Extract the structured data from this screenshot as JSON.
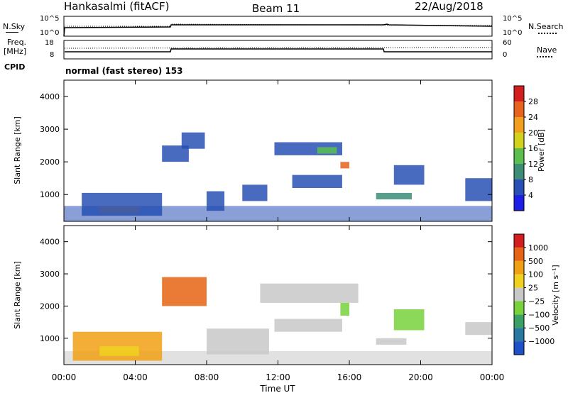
{
  "header": {
    "station": "Hankasalmi (fitACF)",
    "beam": "Beam 11",
    "date": "22/Aug/2018"
  },
  "summary_panels": {
    "nsky_label": "N.Sky",
    "nsearch_label": "N.Search",
    "freq_label": "Freq.",
    "freq_unit": "[MHz]",
    "nave_label": "Nave",
    "cpid_label": "CPID",
    "cpid_text": "normal (fast stereo) 153",
    "noise_ticks": [
      "10^5",
      "10^0"
    ],
    "freq_ticks": [
      "18",
      "8"
    ],
    "nave_ticks": [
      "60",
      "0"
    ]
  },
  "colorbars": {
    "power_label": "Power [dB]",
    "velocity_label": "Velocity [m s⁻¹]"
  },
  "chart_data": [
    {
      "type": "heatmap",
      "title": "",
      "xlabel": "Time UT",
      "ylabel": "Slant Range [km]",
      "xlim": [
        0,
        24
      ],
      "ylim": [
        180,
        4500
      ],
      "x_ticks": [
        "00:00",
        "04:00",
        "08:00",
        "12:00",
        "16:00",
        "20:00",
        "00:00"
      ],
      "y_ticks": [
        "1000",
        "2000",
        "3000",
        "4000"
      ],
      "y_tick_values": [
        1000,
        2000,
        3000,
        4000
      ],
      "colorbar": {
        "label": "Power [dB]",
        "ticks": [
          "4",
          "8",
          "12",
          "16",
          "20",
          "24",
          "28"
        ],
        "colors": [
          "#1e1ee6",
          "#2850b4",
          "#3c8c78",
          "#5abe50",
          "#d2d21e",
          "#f0a01e",
          "#e6641e",
          "#d21e1e"
        ]
      },
      "regions": [
        {
          "t0": 0.0,
          "t1": 24.0,
          "r0": 180,
          "r1": 650,
          "level": 1
        },
        {
          "t0": 2.0,
          "t1": 4.2,
          "r0": 420,
          "r1": 640,
          "level": 5
        },
        {
          "t0": 1.0,
          "t1": 5.5,
          "r0": 350,
          "r1": 1050,
          "level": 1
        },
        {
          "t0": 5.5,
          "t1": 7.0,
          "r0": 2000,
          "r1": 2500,
          "level": 1
        },
        {
          "t0": 6.6,
          "t1": 7.9,
          "r0": 2400,
          "r1": 2900,
          "level": 1
        },
        {
          "t0": 8.0,
          "t1": 9.0,
          "r0": 500,
          "r1": 1100,
          "level": 1
        },
        {
          "t0": 10.0,
          "t1": 11.4,
          "r0": 800,
          "r1": 1300,
          "level": 1
        },
        {
          "t0": 12.8,
          "t1": 15.6,
          "r0": 1200,
          "r1": 1600,
          "level": 1
        },
        {
          "t0": 11.8,
          "t1": 15.6,
          "r0": 2200,
          "r1": 2600,
          "level": 1
        },
        {
          "t0": 14.2,
          "t1": 15.3,
          "r0": 2250,
          "r1": 2450,
          "level": 3
        },
        {
          "t0": 15.5,
          "t1": 16.0,
          "r0": 1800,
          "r1": 2000,
          "level": 6
        },
        {
          "t0": 17.5,
          "t1": 19.5,
          "r0": 850,
          "r1": 1050,
          "level": 2
        },
        {
          "t0": 18.5,
          "t1": 20.2,
          "r0": 1300,
          "r1": 1900,
          "level": 1
        },
        {
          "t0": 22.5,
          "t1": 24.0,
          "r0": 800,
          "r1": 1500,
          "level": 1
        }
      ]
    },
    {
      "type": "heatmap",
      "title": "",
      "xlabel": "Time UT",
      "ylabel": "Slant Range [km]",
      "xlim": [
        0,
        24
      ],
      "ylim": [
        180,
        4500
      ],
      "x_ticks": [
        "00:00",
        "04:00",
        "08:00",
        "12:00",
        "16:00",
        "20:00",
        "00:00"
      ],
      "y_ticks": [
        "1000",
        "2000",
        "3000",
        "4000"
      ],
      "y_tick_values": [
        1000,
        2000,
        3000,
        4000
      ],
      "colorbar": {
        "label": "Velocity [m s⁻¹]",
        "ticks": [
          "1000",
          "500",
          "100",
          "25",
          "−25",
          "−100",
          "−500",
          "−1000"
        ],
        "colors": [
          "#1e50c8",
          "#2878a0",
          "#3ca064",
          "#78d23c",
          "#c8c8c8",
          "#f0d21e",
          "#f0a014",
          "#e66414",
          "#d21e1e"
        ]
      },
      "regions": [
        {
          "t0": 0.0,
          "t1": 24.0,
          "r0": 180,
          "r1": 600,
          "level": 4
        },
        {
          "t0": 0.5,
          "t1": 5.5,
          "r0": 300,
          "r1": 1200,
          "level": 6
        },
        {
          "t0": 2.0,
          "t1": 4.2,
          "r0": 450,
          "r1": 750,
          "level": 5
        },
        {
          "t0": 5.5,
          "t1": 8.0,
          "r0": 2000,
          "r1": 2900,
          "level": 7
        },
        {
          "t0": 8.0,
          "t1": 11.5,
          "r0": 500,
          "r1": 1300,
          "level": 4
        },
        {
          "t0": 11.8,
          "t1": 15.6,
          "r0": 1200,
          "r1": 1600,
          "level": 4
        },
        {
          "t0": 11.0,
          "t1": 16.5,
          "r0": 2100,
          "r1": 2700,
          "level": 4
        },
        {
          "t0": 15.5,
          "t1": 16.0,
          "r0": 1700,
          "r1": 2100,
          "level": 3
        },
        {
          "t0": 17.5,
          "t1": 19.2,
          "r0": 800,
          "r1": 1000,
          "level": 4
        },
        {
          "t0": 18.5,
          "t1": 20.2,
          "r0": 1250,
          "r1": 1900,
          "level": 3
        },
        {
          "t0": 22.5,
          "t1": 24.0,
          "r0": 1100,
          "r1": 1500,
          "level": 4
        }
      ]
    }
  ]
}
